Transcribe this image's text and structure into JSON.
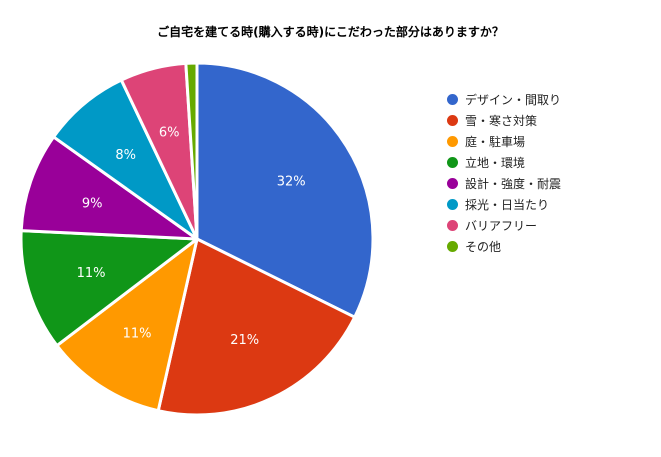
{
  "chart_data": {
    "type": "pie",
    "title": "ご自宅を建てる時(購入する時)にこだわった部分はありますか？",
    "categories": [
      "デザイン・間取り",
      "雪・寒さ対策",
      "庭・駐車場",
      "立地・環境",
      "設計・強度・耐震",
      "採光・日当たり",
      "バリアフリー",
      "その他"
    ],
    "values": [
      32,
      21,
      11,
      11,
      9,
      8,
      6,
      1
    ],
    "labels": [
      "32%",
      "21%",
      "11%",
      "11%",
      "9%",
      "8%",
      "6%",
      ""
    ],
    "colors": [
      "#3366cc",
      "#dc3912",
      "#ff9900",
      "#109618",
      "#990099",
      "#0099c6",
      "#dd4477",
      "#66aa00"
    ],
    "legend_position": "right"
  }
}
